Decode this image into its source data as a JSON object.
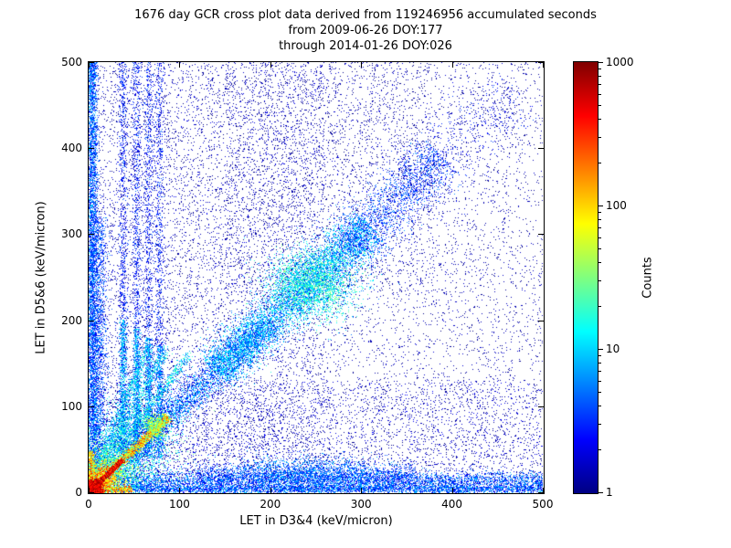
{
  "chart_data": {
    "type": "heatmap",
    "title": "1676 day GCR cross plot data derived from 119246956 accumulated seconds",
    "subtitle": [
      "from 2009-06-26 DOY:177",
      "through 2014-01-26 DOY:026"
    ],
    "xlabel": "LET in D3&4 (keV/micron)",
    "ylabel": "LET in D5&6 (keV/micron)",
    "xlim": [
      0,
      500
    ],
    "ylim": [
      0,
      500
    ],
    "xticks": [
      0,
      100,
      200,
      300,
      400,
      500
    ],
    "yticks": [
      0,
      100,
      200,
      300,
      400,
      500
    ],
    "grid": false,
    "plot_background": "#ffffff",
    "colorbar": {
      "label": "Counts",
      "scale": "log",
      "min": 1,
      "max": 1000,
      "ticks": [
        1,
        10,
        100,
        1000
      ],
      "colormap": "jet",
      "stops": [
        {
          "pos": 0,
          "color": "#000083"
        },
        {
          "pos": 0.125,
          "color": "#0000ff"
        },
        {
          "pos": 0.375,
          "color": "#00ffff"
        },
        {
          "pos": 0.625,
          "color": "#ffff00"
        },
        {
          "pos": 0.875,
          "color": "#ff0000"
        },
        {
          "pos": 1,
          "color": "#800000"
        }
      ]
    },
    "features": [
      {
        "kind": "uniform",
        "n": 9000,
        "x0": 0,
        "x1": 500,
        "y0": 0,
        "y1": 500,
        "cmin": 1,
        "cmax": 1.8
      },
      {
        "kind": "uniform",
        "n": 4500,
        "x0": 0,
        "x1": 260,
        "y0": 0,
        "y1": 500,
        "cmin": 1,
        "cmax": 2.2
      },
      {
        "kind": "uniform",
        "n": 3000,
        "x0": 0,
        "x1": 500,
        "y0": 0,
        "y1": 130,
        "cmin": 1,
        "cmax": 2.5
      },
      {
        "kind": "uniform",
        "n": 1800,
        "x0": 150,
        "x1": 380,
        "y0": 230,
        "y1": 500,
        "cmin": 1,
        "cmax": 2
      },
      {
        "kind": "vstreak",
        "x": 4,
        "sigma": 3,
        "y0": 0,
        "y1": 500,
        "n": 4200,
        "cmin": 2,
        "cmax": 10
      },
      {
        "kind": "vstreak",
        "x": 10,
        "sigma": 5,
        "y0": 0,
        "y1": 320,
        "n": 2200,
        "cmin": 2,
        "cmax": 7
      },
      {
        "kind": "hband",
        "y": 4,
        "sigma": 3,
        "x0": 0,
        "x1": 500,
        "n": 4200,
        "cmin": 2,
        "cmax": 10
      },
      {
        "kind": "hband",
        "y": 14,
        "sigma": 5,
        "x0": 30,
        "x1": 500,
        "n": 3600,
        "cmin": 2,
        "cmax": 9
      },
      {
        "kind": "hband",
        "y": 20,
        "sigma": 7,
        "x0": 120,
        "x1": 360,
        "n": 1500,
        "cmin": 2,
        "cmax": 6
      },
      {
        "kind": "blob",
        "cx": 240,
        "cy": 24,
        "sx": 45,
        "sy": 9,
        "n": 1200,
        "cmin": 3,
        "cmax": 10
      },
      {
        "kind": "vstreak",
        "x": 38,
        "sigma": 2.5,
        "y0": 40,
        "y1": 500,
        "n": 1000,
        "cmin": 1.5,
        "cmax": 5
      },
      {
        "kind": "vstreak",
        "x": 53,
        "sigma": 2.5,
        "y0": 40,
        "y1": 500,
        "n": 1000,
        "cmin": 1.5,
        "cmax": 5
      },
      {
        "kind": "vstreak",
        "x": 66,
        "sigma": 2.5,
        "y0": 40,
        "y1": 500,
        "n": 900,
        "cmin": 1.5,
        "cmax": 5
      },
      {
        "kind": "vstreak",
        "x": 78,
        "sigma": 2.5,
        "y0": 40,
        "y1": 500,
        "n": 800,
        "cmin": 1.5,
        "cmax": 5
      },
      {
        "kind": "vstreak",
        "x": 38,
        "sigma": 2,
        "y0": 40,
        "y1": 200,
        "n": 700,
        "cmin": 4,
        "cmax": 18
      },
      {
        "kind": "vstreak",
        "x": 53,
        "sigma": 2,
        "y0": 40,
        "y1": 190,
        "n": 650,
        "cmin": 4,
        "cmax": 16
      },
      {
        "kind": "vstreak",
        "x": 66,
        "sigma": 2,
        "y0": 40,
        "y1": 180,
        "n": 600,
        "cmin": 4,
        "cmax": 14
      },
      {
        "kind": "vstreak",
        "x": 78,
        "sigma": 2,
        "y0": 40,
        "y1": 170,
        "n": 500,
        "cmin": 3,
        "cmax": 12
      },
      {
        "kind": "ray",
        "m": 1.45,
        "t0": 5,
        "t1": 110,
        "sigma": 3,
        "n": 900,
        "cmin": 4,
        "cmax": 25
      },
      {
        "kind": "ray",
        "m": 1.95,
        "t0": 5,
        "t1": 85,
        "sigma": 3,
        "n": 800,
        "cmin": 4,
        "cmax": 25
      },
      {
        "kind": "ray",
        "m": 2.6,
        "t0": 5,
        "t1": 65,
        "sigma": 3,
        "n": 700,
        "cmin": 4,
        "cmax": 22
      },
      {
        "kind": "blob",
        "cx": 42,
        "cy": 46,
        "sx": 26,
        "sy": 28,
        "n": 2400,
        "cmin": 4,
        "cmax": 30
      },
      {
        "kind": "diag",
        "t0": 40,
        "t1": 200,
        "sigma": 9,
        "n": 3200,
        "cmin": 2,
        "cmax": 12
      },
      {
        "kind": "diag",
        "t0": 140,
        "t1": 310,
        "sigma": 13,
        "n": 5200,
        "cmin": 3,
        "cmax": 18
      },
      {
        "kind": "blob",
        "cx": 247,
        "cy": 243,
        "sx": 24,
        "sy": 20,
        "n": 2600,
        "cmin": 5,
        "cmax": 35
      },
      {
        "kind": "diag",
        "t0": 280,
        "t1": 390,
        "sigma": 16,
        "n": 1700,
        "cmin": 2,
        "cmax": 7
      },
      {
        "kind": "diag",
        "t0": 350,
        "t1": 470,
        "sigma": 22,
        "n": 700,
        "cmin": 1,
        "cmax": 4
      },
      {
        "kind": "diag",
        "t0": 0,
        "t1": 88,
        "sigma": 2.6,
        "n": 2600,
        "cmin": 25,
        "cmax": 350
      },
      {
        "kind": "blob",
        "cx": 74,
        "cy": 77,
        "sx": 6,
        "sy": 7,
        "n": 500,
        "cmin": 15,
        "cmax": 90
      },
      {
        "kind": "hband",
        "y": 3,
        "sigma": 2,
        "x0": 0,
        "x1": 48,
        "n": 900,
        "cmin": 40,
        "cmax": 400
      },
      {
        "kind": "vstreak",
        "x": 3,
        "sigma": 2,
        "y0": 0,
        "y1": 48,
        "n": 700,
        "cmin": 30,
        "cmax": 250
      },
      {
        "kind": "blob",
        "cx": 22,
        "cy": 22,
        "sx": 13,
        "sy": 13,
        "n": 1400,
        "cmin": 8,
        "cmax": 90
      },
      {
        "kind": "blob",
        "cx": 12,
        "cy": 12,
        "sx": 8,
        "sy": 8,
        "n": 1600,
        "cmin": 40,
        "cmax": 400
      },
      {
        "kind": "diag",
        "t0": 0,
        "t1": 38,
        "sigma": 1.3,
        "n": 1700,
        "cmin": 200,
        "cmax": 1000
      },
      {
        "kind": "blob",
        "cx": 5,
        "cy": 5,
        "sx": 4,
        "sy": 4,
        "n": 2500,
        "cmin": 300,
        "cmax": 1000
      }
    ]
  }
}
